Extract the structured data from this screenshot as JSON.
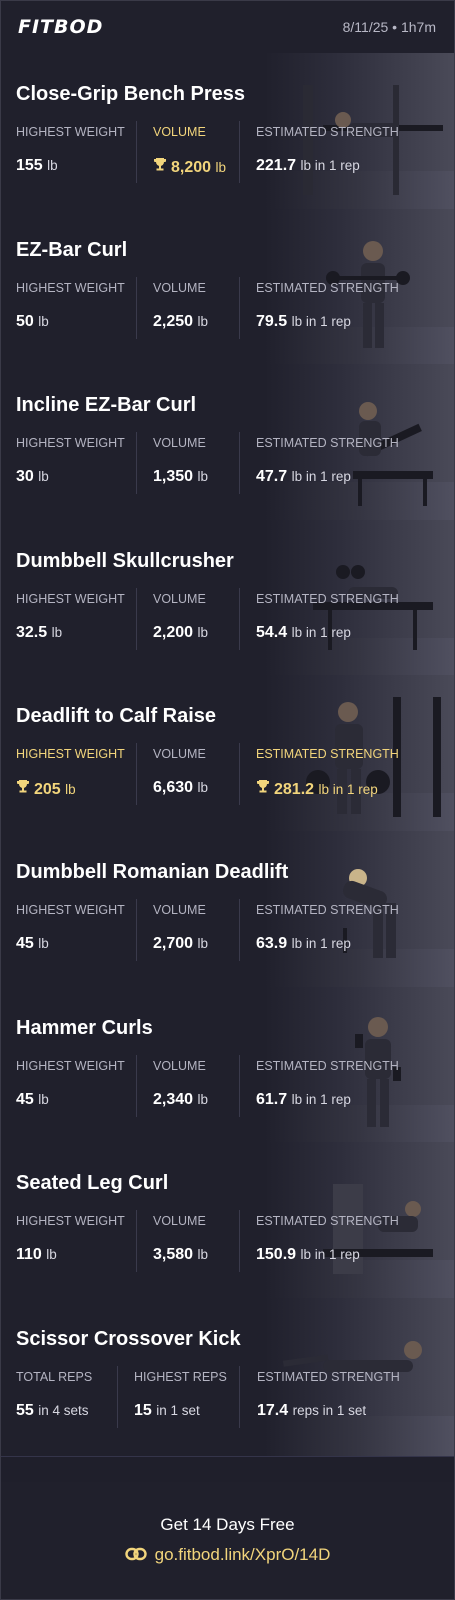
{
  "app": {
    "logo": "FITBOD",
    "date": "8/11/25 • 1h7m"
  },
  "exercises": [
    {
      "name": "Close-Grip Bench Press",
      "stats": [
        {
          "label": "HIGHEST WEIGHT",
          "value": "155",
          "unit": "lb",
          "highlight": false
        },
        {
          "label": "VOLUME",
          "value": "8,200",
          "unit": "lb",
          "highlight": true
        },
        {
          "label": "ESTIMATED STRENGTH",
          "value": "221.7",
          "unit": "lb in 1 rep",
          "highlight": false
        }
      ]
    },
    {
      "name": "EZ-Bar Curl",
      "stats": [
        {
          "label": "HIGHEST WEIGHT",
          "value": "50",
          "unit": "lb",
          "highlight": false
        },
        {
          "label": "VOLUME",
          "value": "2,250",
          "unit": "lb",
          "highlight": false
        },
        {
          "label": "ESTIMATED STRENGTH",
          "value": "79.5",
          "unit": "lb in 1 rep",
          "highlight": false
        }
      ]
    },
    {
      "name": "Incline EZ-Bar Curl",
      "stats": [
        {
          "label": "HIGHEST WEIGHT",
          "value": "30",
          "unit": "lb",
          "highlight": false
        },
        {
          "label": "VOLUME",
          "value": "1,350",
          "unit": "lb",
          "highlight": false
        },
        {
          "label": "ESTIMATED STRENGTH",
          "value": "47.7",
          "unit": "lb in 1 rep",
          "highlight": false
        }
      ]
    },
    {
      "name": "Dumbbell Skullcrusher",
      "stats": [
        {
          "label": "HIGHEST WEIGHT",
          "value": "32.5",
          "unit": "lb",
          "highlight": false
        },
        {
          "label": "VOLUME",
          "value": "2,200",
          "unit": "lb",
          "highlight": false
        },
        {
          "label": "ESTIMATED STRENGTH",
          "value": "54.4",
          "unit": "lb in 1 rep",
          "highlight": false
        }
      ]
    },
    {
      "name": "Deadlift to Calf Raise",
      "stats": [
        {
          "label": "HIGHEST WEIGHT",
          "value": "205",
          "unit": "lb",
          "highlight": true
        },
        {
          "label": "VOLUME",
          "value": "6,630",
          "unit": "lb",
          "highlight": false
        },
        {
          "label": "ESTIMATED STRENGTH",
          "value": "281.2",
          "unit": "lb in 1 rep",
          "highlight": true
        }
      ]
    },
    {
      "name": "Dumbbell Romanian Deadlift",
      "stats": [
        {
          "label": "HIGHEST WEIGHT",
          "value": "45",
          "unit": "lb",
          "highlight": false
        },
        {
          "label": "VOLUME",
          "value": "2,700",
          "unit": "lb",
          "highlight": false
        },
        {
          "label": "ESTIMATED STRENGTH",
          "value": "63.9",
          "unit": "lb in 1 rep",
          "highlight": false
        }
      ]
    },
    {
      "name": "Hammer Curls",
      "stats": [
        {
          "label": "HIGHEST WEIGHT",
          "value": "45",
          "unit": "lb",
          "highlight": false
        },
        {
          "label": "VOLUME",
          "value": "2,340",
          "unit": "lb",
          "highlight": false
        },
        {
          "label": "ESTIMATED STRENGTH",
          "value": "61.7",
          "unit": "lb in 1 rep",
          "highlight": false
        }
      ]
    },
    {
      "name": "Seated Leg Curl",
      "stats": [
        {
          "label": "HIGHEST WEIGHT",
          "value": "110",
          "unit": "lb",
          "highlight": false
        },
        {
          "label": "VOLUME",
          "value": "3,580",
          "unit": "lb",
          "highlight": false
        },
        {
          "label": "ESTIMATED STRENGTH",
          "value": "150.9",
          "unit": "lb in 1 rep",
          "highlight": false
        }
      ]
    },
    {
      "name": "Scissor Crossover Kick",
      "stats": [
        {
          "label": "TOTAL REPS",
          "value": "55",
          "unit": "in 4 sets",
          "highlight": false
        },
        {
          "label": "HIGHEST REPS",
          "value": "15",
          "unit": "in 1 set",
          "highlight": false
        },
        {
          "label": "ESTIMATED STRENGTH",
          "value": "17.4",
          "unit": "reps in 1 set",
          "highlight": false
        }
      ]
    }
  ],
  "footer": {
    "cta": "Get 14 Days Free",
    "link": "go.fitbod.link/XprO/14D"
  },
  "colors": {
    "background": "#20202c",
    "highlight": "#f2d57c",
    "label": "#b4b4c2",
    "divider": "#34344a"
  },
  "icons": {
    "trophy": "trophy-icon",
    "link": "link-icon"
  }
}
